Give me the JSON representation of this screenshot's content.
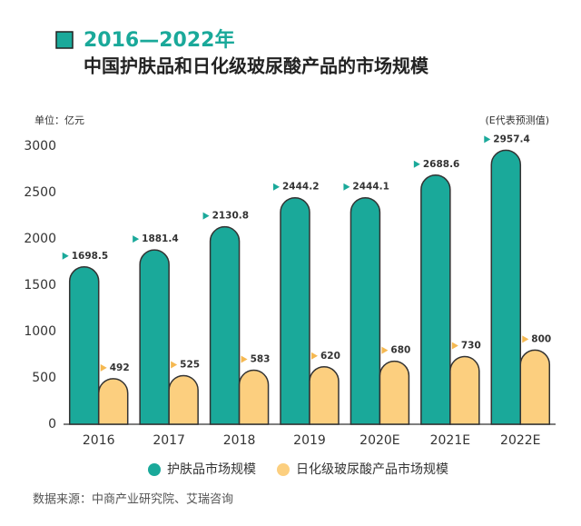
{
  "chart_data": {
    "type": "bar",
    "title": "2016—2022年",
    "subtitle": "中国护肤品和日化级玻尿酸产品的市场规模",
    "y_axis_unit": "单位：亿元",
    "note": "(E代表预测值)",
    "source": "数据来源：中商产业研究院、艾瑞咨询",
    "categories": [
      "2016",
      "2017",
      "2018",
      "2019",
      "2020E",
      "2021E",
      "2022E"
    ],
    "series": [
      {
        "name": "护肤品市场规模",
        "color": "#1aa99a",
        "values": [
          1698.5,
          1881.4,
          2130.8,
          2444.2,
          2444.1,
          2688.6,
          2957.4
        ]
      },
      {
        "name": "日化级玻尿酸产品市场规模",
        "color": "#fccf7f",
        "values": [
          492,
          525,
          583,
          620,
          680,
          730,
          800
        ]
      }
    ],
    "ylim": [
      0,
      3000
    ],
    "yticks": [
      0,
      500,
      1000,
      1500,
      2000,
      2500,
      3000
    ]
  }
}
